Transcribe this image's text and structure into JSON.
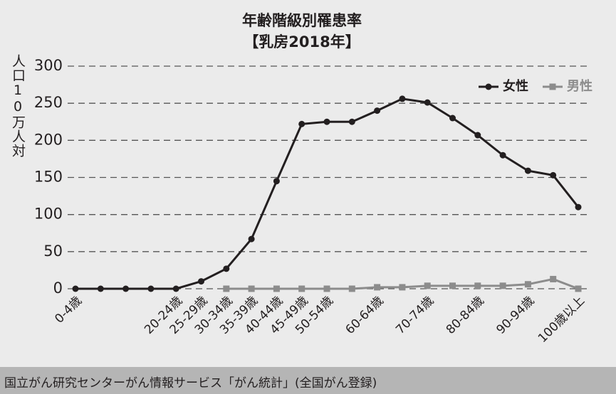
{
  "chart_data": {
    "type": "line",
    "title": "年齢階級別罹患率",
    "subtitle": "【乳房2018年】",
    "y_label": "人口10万人対",
    "source": "国立がん研究センターがん情報サービス「がん統計」(全国がん登録)",
    "categories": [
      "0-4歳",
      null,
      null,
      null,
      "20-24歳",
      "25-29歳",
      "30-34歳",
      "35-39歳",
      "40-44歳",
      "45-49歳",
      "50-54歳",
      null,
      "60-64歳",
      null,
      "70-74歳",
      null,
      "80-84歳",
      null,
      "90-94歳",
      null,
      "100歳以上"
    ],
    "series": [
      {
        "name": "女性",
        "color": "#231f20",
        "marker": "circle",
        "values": [
          0,
          0,
          0,
          0,
          0,
          10,
          27,
          67,
          145,
          222,
          225,
          225,
          240,
          256,
          251,
          230,
          207,
          180,
          159,
          153,
          110
        ]
      },
      {
        "name": "男性",
        "color": "#8c8c8c",
        "marker": "square",
        "values": [
          null,
          null,
          null,
          null,
          null,
          null,
          0,
          0,
          0,
          0,
          0,
          0,
          2,
          2,
          4,
          4,
          4,
          4,
          6,
          13,
          0
        ]
      }
    ],
    "ylim": [
      0,
      300
    ],
    "yticks": [
      0,
      50,
      100,
      150,
      200,
      250,
      300
    ],
    "grid": true,
    "legend": "upper right"
  }
}
